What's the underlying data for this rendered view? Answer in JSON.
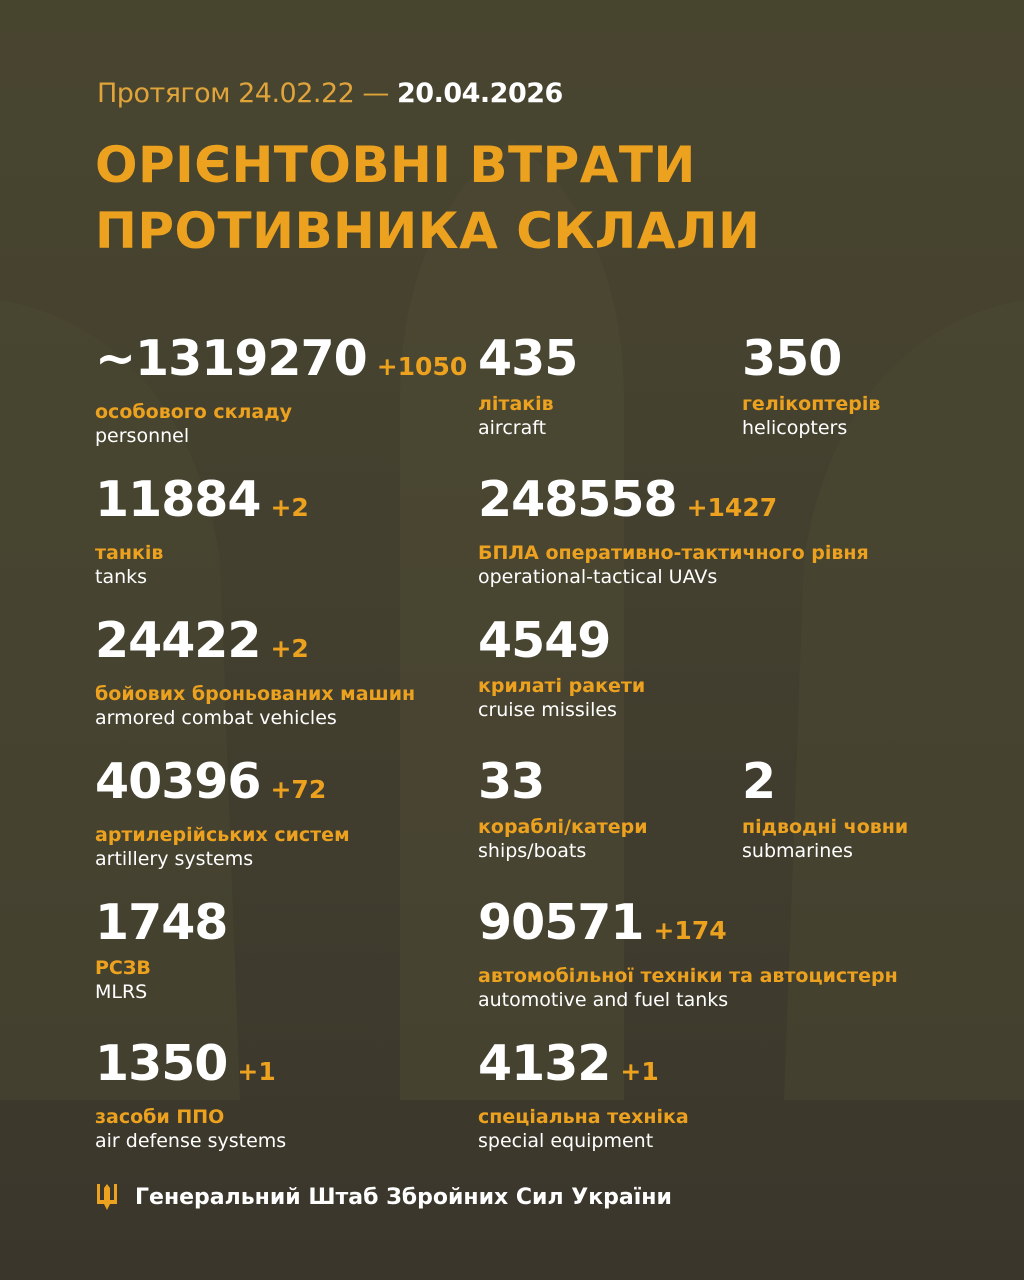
{
  "header": {
    "period_prefix": "Протягом 24.02.22 —",
    "period_end": "20.04.2026",
    "title_line1": "ОРІЄНТОВНІ ВТРАТИ",
    "title_line2": "ПРОТИВНИКА СКЛАЛИ"
  },
  "colors": {
    "accent": "#eda21f",
    "background": "#46432f",
    "text": "#ffffff"
  },
  "stats": [
    {
      "value": "~1319270",
      "delta": "+1050",
      "ua": "особового складу",
      "en": "personnel"
    },
    {
      "value": "435",
      "delta": "",
      "ua": "літаків",
      "en": "aircraft"
    },
    {
      "value": "350",
      "delta": "",
      "ua": "гелікоптерів",
      "en": "helicopters"
    },
    {
      "value": "11884",
      "delta": "+2",
      "ua": "танків",
      "en": "tanks"
    },
    {
      "value": "248558",
      "delta": "+1427",
      "ua": "БПЛА оперативно-тактичного рівня",
      "en": "operational-tactical UAVs"
    },
    {
      "value": "24422",
      "delta": "+2",
      "ua": "бойових броньованих машин",
      "en": "armored combat vehicles"
    },
    {
      "value": "4549",
      "delta": "",
      "ua": "крилаті ракети",
      "en": "cruise missiles"
    },
    {
      "value": "40396",
      "delta": "+72",
      "ua": "артилерійських систем",
      "en": "artillery systems"
    },
    {
      "value": "33",
      "delta": "",
      "ua": "кораблі/катери",
      "en": "ships/boats"
    },
    {
      "value": "2",
      "delta": "",
      "ua": "підводні човни",
      "en": "submarines"
    },
    {
      "value": "1748",
      "delta": "",
      "ua": "РСЗВ",
      "en": "MLRS"
    },
    {
      "value": "90571",
      "delta": "+174",
      "ua": "автомобільної техніки та автоцистерн",
      "en": "automotive and fuel tanks"
    },
    {
      "value": "1350",
      "delta": "+1",
      "ua": "засоби ППО",
      "en": "air defense systems"
    },
    {
      "value": "4132",
      "delta": "+1",
      "ua": "спеціальна техніка",
      "en": "special equipment"
    }
  ],
  "footer": {
    "icon": "trident-icon",
    "text": "Генеральний Штаб Збройних Сил України"
  }
}
